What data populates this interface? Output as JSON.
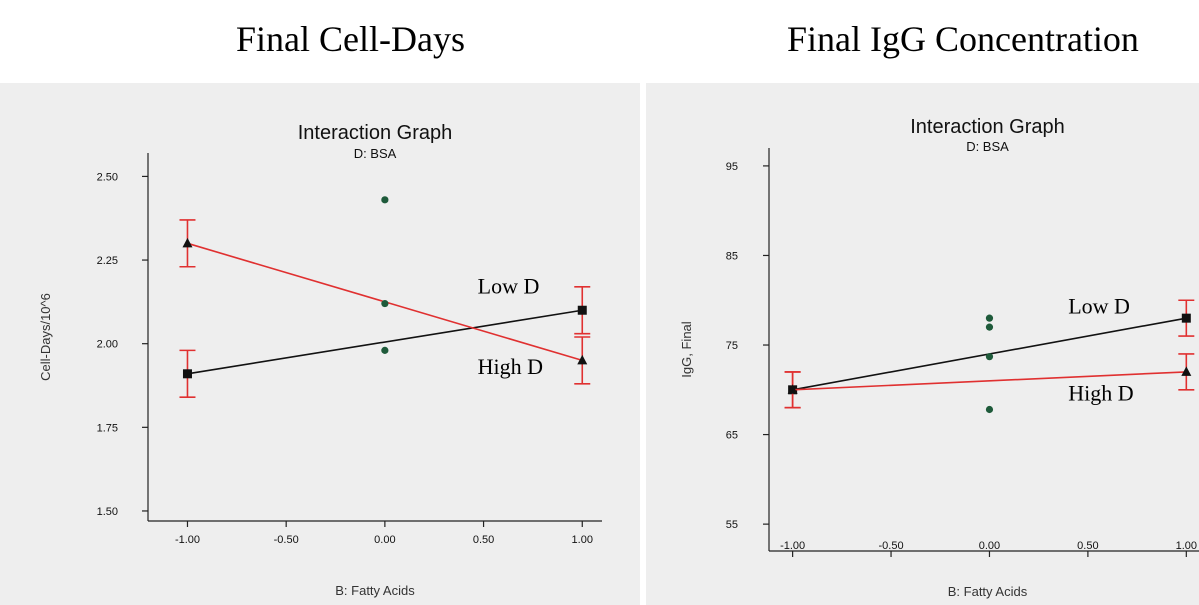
{
  "headings": {
    "left": "Final Cell-Days",
    "right": "Final IgG Concentration"
  },
  "colors": {
    "low_series": "#111111",
    "high_series": "#e03030",
    "points": "#1e5a3a",
    "panel_background": "#eeeeee"
  },
  "chart_data": [
    {
      "type": "line",
      "title": "Interaction Graph",
      "subtitle": "D: BSA",
      "xlabel": "B: Fatty Acids",
      "ylabel": "Cell-Days/10^6",
      "xlim": [
        -1.2,
        1.1
      ],
      "ylim": [
        1.47,
        2.57
      ],
      "xticks": [
        -1.0,
        -0.5,
        0.0,
        0.5,
        1.0
      ],
      "xtick_labels": [
        "-1.00",
        "-0.50",
        "0.00",
        "0.50",
        "1.00"
      ],
      "yticks": [
        1.5,
        1.75,
        2.0,
        2.25,
        2.5
      ],
      "ytick_labels": [
        "1.50",
        "1.75",
        "2.00",
        "2.25",
        "2.50"
      ],
      "grid": false,
      "series": [
        {
          "name": "",
          "role": "low",
          "color": "#111111",
          "marker": "square",
          "x": [
            -1,
            1
          ],
          "y": [
            1.91,
            2.1
          ],
          "err_low": [
            1.84,
            2.03
          ],
          "err_high": [
            1.98,
            2.17
          ]
        },
        {
          "name": "",
          "role": "high",
          "color": "#e03030",
          "marker": "triangle",
          "x": [
            -1,
            1
          ],
          "y": [
            2.3,
            1.95
          ],
          "err_low": [
            2.23,
            1.88
          ],
          "err_high": [
            2.37,
            2.02
          ]
        }
      ],
      "points": [
        {
          "x": 0,
          "y": 2.43
        },
        {
          "x": 0,
          "y": 2.12
        },
        {
          "x": 0,
          "y": 1.98
        }
      ],
      "annotations": [
        {
          "text": "Low D",
          "x": 0.47,
          "y": 2.15
        },
        {
          "text": "High D",
          "x": 0.47,
          "y": 1.91
        }
      ]
    },
    {
      "type": "line",
      "title": "Interaction Graph",
      "subtitle": "D: BSA",
      "xlabel": "B: Fatty Acids",
      "ylabel": "IgG, Final",
      "xlim": [
        -1.12,
        1.1
      ],
      "ylim": [
        52,
        97
      ],
      "xticks": [
        -1.0,
        -0.5,
        0.0,
        0.5,
        1.0
      ],
      "xtick_labels": [
        "-1.00",
        "-0.50",
        "0.00",
        "0.50",
        "1.00"
      ],
      "yticks": [
        55,
        65,
        75,
        85,
        95
      ],
      "ytick_labels": [
        "55",
        "65",
        "75",
        "85",
        "95"
      ],
      "grid": false,
      "series": [
        {
          "name": "",
          "role": "low",
          "color": "#111111",
          "marker": "square",
          "x": [
            -1,
            1
          ],
          "y": [
            70,
            78
          ],
          "err_low": [
            68,
            76
          ],
          "err_high": [
            72,
            80
          ]
        },
        {
          "name": "",
          "role": "high",
          "color": "#e03030",
          "marker": "triangle",
          "x": [
            -1,
            1
          ],
          "y": [
            70,
            72
          ],
          "err_low": [
            68,
            70
          ],
          "err_high": [
            72,
            74
          ]
        }
      ],
      "points": [
        {
          "x": 0,
          "y": 78
        },
        {
          "x": 0,
          "y": 77
        },
        {
          "x": 0,
          "y": 73.7
        },
        {
          "x": 0,
          "y": 67.8
        }
      ],
      "annotations": [
        {
          "text": "Low D",
          "x": 0.4,
          "y": 78.5
        },
        {
          "text": "High D",
          "x": 0.4,
          "y": 68.8
        }
      ]
    }
  ]
}
